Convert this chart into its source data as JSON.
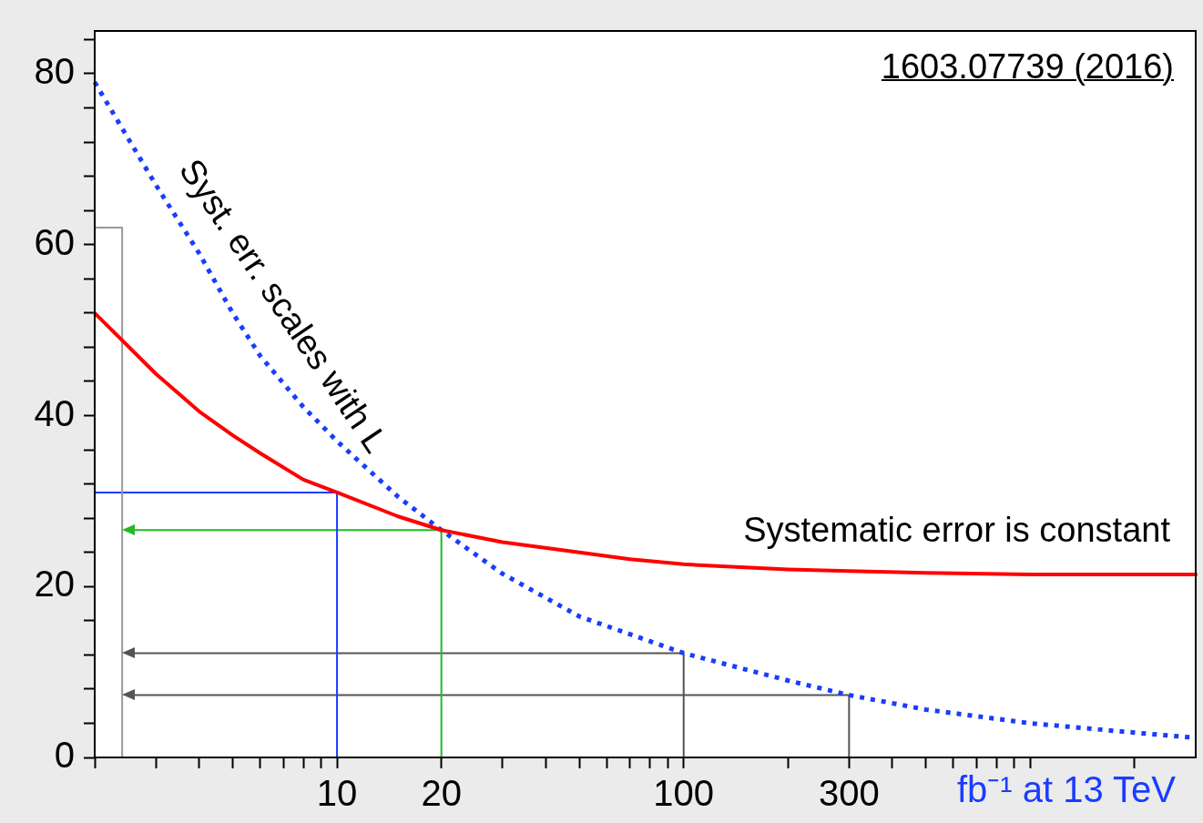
{
  "chart_data": {
    "type": "line",
    "xlabel": "fb⁻¹ at 13 TeV",
    "log": "x",
    "xlim": [
      2,
      3000
    ],
    "ylim": [
      0,
      85
    ],
    "xticks": [
      {
        "value": 2,
        "label": null
      },
      {
        "value": 3,
        "label": null
      },
      {
        "value": 4,
        "label": null
      },
      {
        "value": 5,
        "label": null
      },
      {
        "value": 6,
        "label": null
      },
      {
        "value": 7,
        "label": null
      },
      {
        "value": 8,
        "label": null
      },
      {
        "value": 9,
        "label": null
      },
      10,
      20,
      {
        "value": 30,
        "label": null
      },
      {
        "value": 40,
        "label": null
      },
      {
        "value": 50,
        "label": null
      },
      {
        "value": 60,
        "label": null
      },
      {
        "value": 70,
        "label": null
      },
      {
        "value": 80,
        "label": null
      },
      {
        "value": 90,
        "label": null
      },
      100,
      {
        "value": 200,
        "label": null
      },
      300,
      {
        "value": 400,
        "label": null
      },
      {
        "value": 500,
        "label": null
      },
      {
        "value": 600,
        "label": null
      },
      {
        "value": 700,
        "label": null
      },
      {
        "value": 800,
        "label": null
      },
      {
        "value": 900,
        "label": null
      },
      {
        "value": 1000,
        "label": null
      },
      {
        "value": 2000,
        "label": null
      }
    ],
    "yticks": [
      0,
      {
        "value": 4,
        "label": null
      },
      {
        "value": 8,
        "label": null
      },
      {
        "value": 12,
        "label": null
      },
      {
        "value": 16,
        "label": null
      },
      20,
      {
        "value": 24,
        "label": null
      },
      {
        "value": 28,
        "label": null
      },
      {
        "value": 32,
        "label": null
      },
      {
        "value": 36,
        "label": null
      },
      40,
      {
        "value": 44,
        "label": null
      },
      {
        "value": 48,
        "label": null
      },
      {
        "value": 52,
        "label": null
      },
      {
        "value": 56,
        "label": null
      },
      60,
      {
        "value": 64,
        "label": null
      },
      {
        "value": 68,
        "label": null
      },
      {
        "value": 72,
        "label": null
      },
      {
        "value": 76,
        "label": null
      },
      80,
      {
        "value": 84,
        "label": null
      }
    ],
    "grid": false,
    "legend": false,
    "series": [
      {
        "color": "#ff0000",
        "line_style": "solid",
        "x": [
          2,
          3,
          4,
          5,
          6,
          8,
          10,
          15,
          20,
          30,
          50,
          70,
          100,
          200,
          300,
          500,
          1000,
          2000,
          3000
        ],
        "values": [
          52,
          44.9,
          40.5,
          37.7,
          35.6,
          32.5,
          31,
          28.2,
          26.6,
          25.2,
          24,
          23.2,
          22.6,
          22,
          21.8,
          21.6,
          21.4,
          21.4,
          21.4
        ]
      },
      {
        "color": "#1a3cff",
        "line_style": "dotted",
        "x": [
          2,
          3,
          4,
          5,
          6,
          8,
          10,
          15,
          20,
          30,
          50,
          100,
          200,
          300,
          500,
          1000,
          2000,
          3000
        ],
        "values": [
          79,
          67,
          59,
          52,
          47,
          41,
          37,
          30.5,
          26.6,
          21.5,
          16.5,
          12.2,
          9,
          7.3,
          5.6,
          4,
          2.9,
          2.3
        ]
      },
      {
        "color": "#999999",
        "line_style": "solid",
        "x": [
          2.4,
          2.4,
          2
        ],
        "values": [
          0,
          62,
          62
        ]
      },
      {
        "color": "#1a3cff",
        "line_style": "solid",
        "x": [
          10,
          10,
          2
        ],
        "values": [
          0,
          31,
          31
        ]
      },
      {
        "color": "#22bb22",
        "line_style": "solid",
        "x": [
          20,
          20,
          2.5
        ],
        "values": [
          0,
          26.6,
          26.6
        ]
      },
      {
        "color": "#555555",
        "line_style": "solid",
        "x": [
          100,
          100,
          2.5
        ],
        "values": [
          0,
          12.2,
          12.2
        ]
      },
      {
        "color": "#555555",
        "line_style": "solid",
        "x": [
          300,
          300,
          2.5
        ],
        "values": [
          0,
          7.3,
          7.3
        ]
      }
    ],
    "annotations": [
      "1603.07739 (2016)",
      "Syst. err. scales with L",
      "Systematic error is constant"
    ]
  }
}
